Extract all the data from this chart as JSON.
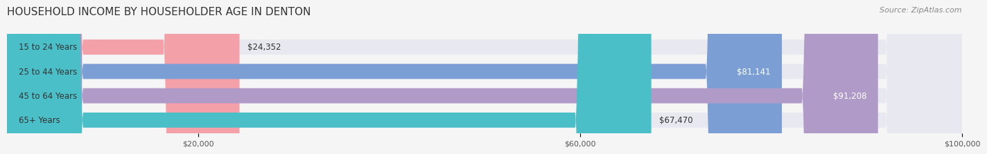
{
  "title": "HOUSEHOLD INCOME BY HOUSEHOLDER AGE IN DENTON",
  "source": "Source: ZipAtlas.com",
  "categories": [
    "15 to 24 Years",
    "25 to 44 Years",
    "45 to 64 Years",
    "65+ Years"
  ],
  "values": [
    24352,
    81141,
    91208,
    67470
  ],
  "bar_colors": [
    "#f4a0a8",
    "#7b9fd4",
    "#b09ac8",
    "#4bbfc8"
  ],
  "bar_bg_color": "#e8e8f0",
  "value_labels": [
    "$24,352",
    "$81,141",
    "$91,208",
    "$67,470"
  ],
  "xmin": 0,
  "xmax": 100000,
  "xticks": [
    20000,
    60000,
    100000
  ],
  "xtick_labels": [
    "$20,000",
    "$60,000",
    "$100,000"
  ],
  "title_fontsize": 11,
  "source_fontsize": 8,
  "label_fontsize": 8.5,
  "value_fontsize": 8.5,
  "tick_fontsize": 8,
  "background_color": "#f5f5f5"
}
